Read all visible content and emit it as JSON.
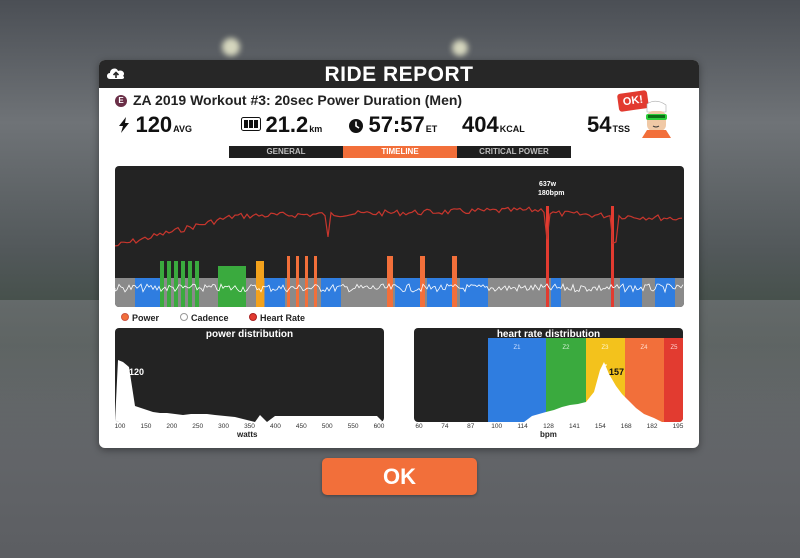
{
  "header": {
    "title": "RIDE REPORT"
  },
  "workout": {
    "badge": "E",
    "title": "ZA 2019 Workout #3: 20sec Power Duration (Men)"
  },
  "stats": {
    "power": {
      "value": "120",
      "unit": "AVG"
    },
    "distance": {
      "value": "21.2",
      "unit": "km"
    },
    "time": {
      "value": "57:57",
      "unit": "ET"
    },
    "calories": {
      "value": "404",
      "unit": "KCAL"
    },
    "tss": {
      "value": "54",
      "unit": "TSS"
    }
  },
  "tabs": [
    {
      "label": "GENERAL",
      "active": false
    },
    {
      "label": "TIMELINE",
      "active": true
    },
    {
      "label": "CRITICAL POWER",
      "active": false
    }
  ],
  "timeline": {
    "peak_label_watts": "637w",
    "peak_label_bpm": "180bpm"
  },
  "legend": {
    "power": "Power",
    "cadence": "Cadence",
    "heart_rate": "Heart Rate"
  },
  "power_distribution": {
    "title": "power distribution",
    "xlabel": "watts",
    "ticks": [
      "100",
      "150",
      "200",
      "250",
      "300",
      "350",
      "400",
      "450",
      "500",
      "550",
      "600"
    ],
    "avg_label": "120"
  },
  "heart_rate_distribution": {
    "title": "heart rate distribution",
    "xlabel": "bpm",
    "ticks": [
      "60",
      "74",
      "87",
      "100",
      "114",
      "128",
      "141",
      "154",
      "168",
      "182",
      "195"
    ],
    "zones": [
      "Z1",
      "Z2",
      "Z3",
      "Z4",
      "Z5"
    ],
    "avg_label": "157"
  },
  "ok_sign": "OK!",
  "ok_button": "OK",
  "colors": {
    "accent": "#f26f3a",
    "panel_dark": "#232323",
    "hr_line": "#c8362d",
    "zone1": "#2f7de0",
    "zone2": "#3aaa3e",
    "zone3": "#f3c21c",
    "zone4": "#f26f3a",
    "zone5": "#e23b30"
  }
}
